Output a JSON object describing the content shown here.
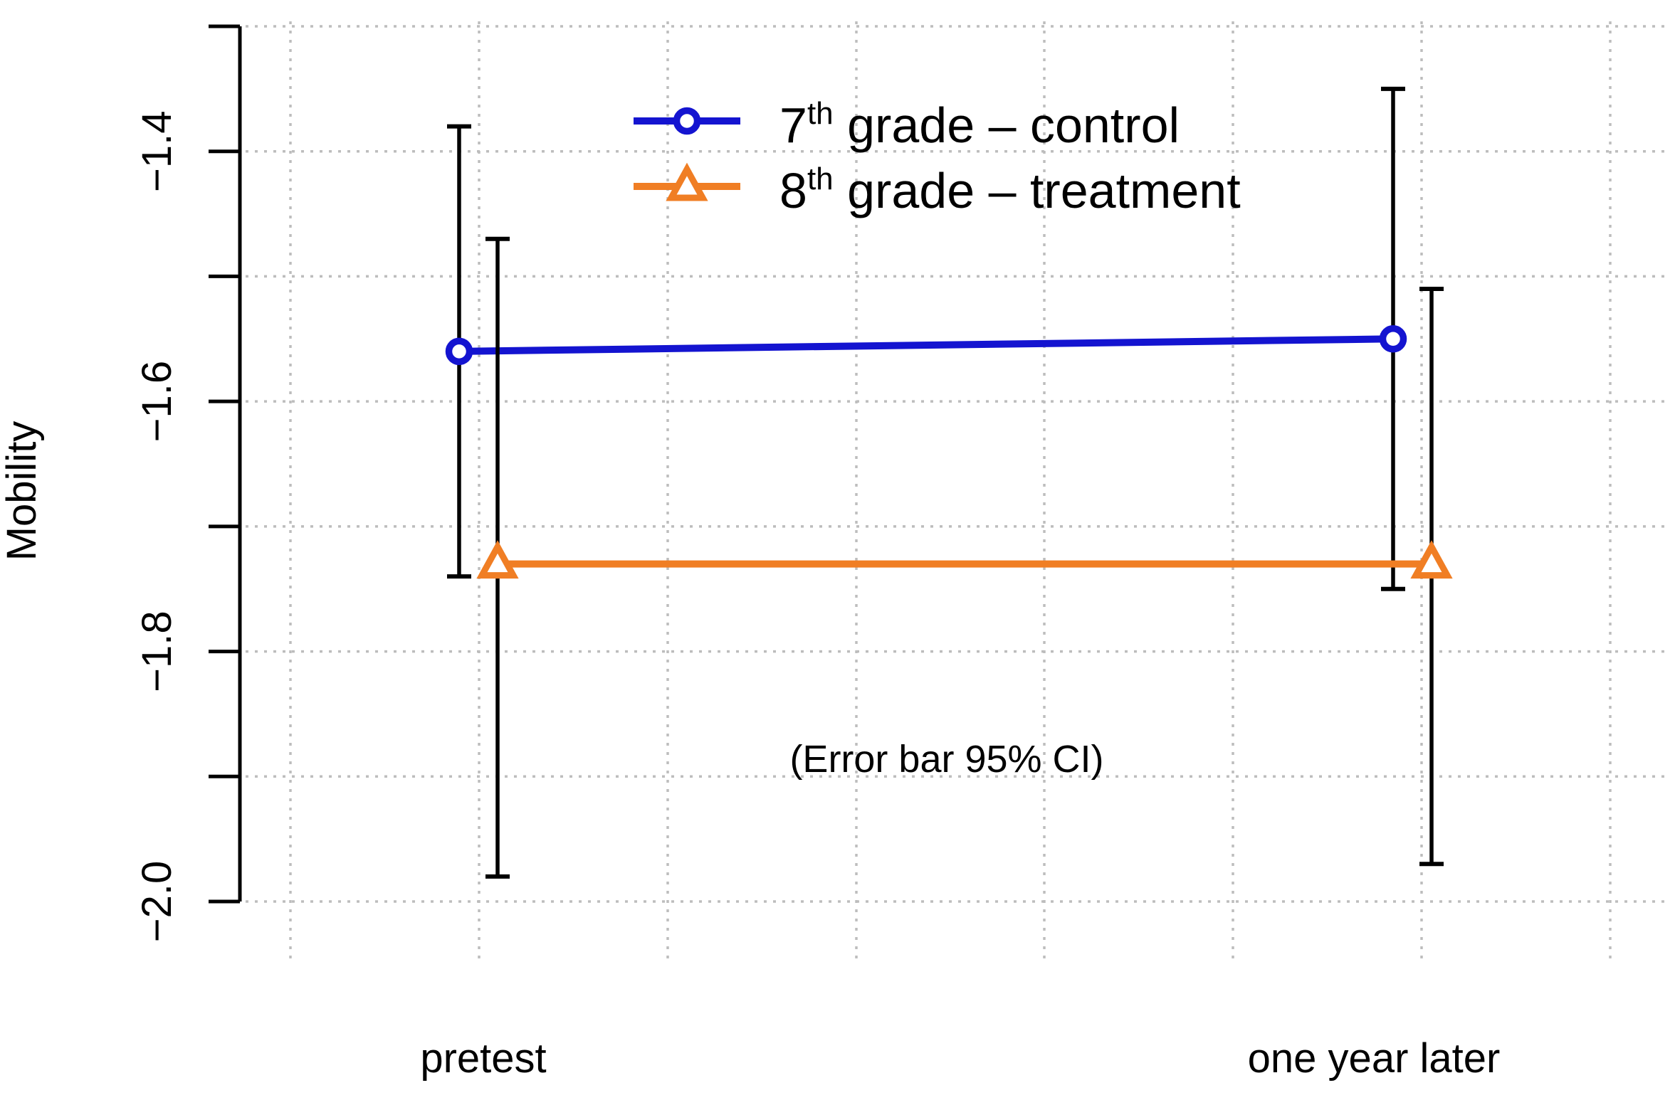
{
  "chart_data": {
    "type": "line",
    "title": "",
    "categories": [
      "pretest",
      "one year later"
    ],
    "ylabel": "Mobility",
    "ylim": [
      -2.0,
      -1.3
    ],
    "yticks": [
      -1.3,
      -1.4,
      -1.5,
      -1.6,
      -1.7,
      -1.8,
      -1.9,
      -2.0
    ],
    "ytick_items": [
      {
        "v": -1.3,
        "label": ""
      },
      {
        "v": -1.4,
        "label": "−1.4"
      },
      {
        "v": -1.5,
        "label": ""
      },
      {
        "v": -1.6,
        "label": "−1.6"
      },
      {
        "v": -1.7,
        "label": ""
      },
      {
        "v": -1.8,
        "label": "−1.8"
      },
      {
        "v": -1.9,
        "label": ""
      },
      {
        "v": -2.0,
        "label": "−2.0"
      }
    ],
    "grid": true,
    "grid_style": "dotted",
    "legend_position": "top-center-inside",
    "annotation": "(Error bar 95% CI)",
    "error_bars": "95% CI",
    "error_bar_color": "#000000",
    "series": [
      {
        "key": "control",
        "name": "7th grade – control",
        "label_parts": {
          "base": "7",
          "sup": "th",
          "rest": " grade – control"
        },
        "color": "#1414d0",
        "marker": "circle",
        "values": [
          -1.56,
          -1.55
        ],
        "ci_high": [
          -1.38,
          -1.35
        ],
        "ci_low": [
          -1.74,
          -1.75
        ]
      },
      {
        "key": "treatment",
        "name": "8th grade – treatment",
        "label_parts": {
          "base": "8",
          "sup": "th",
          "rest": " grade – treatment"
        },
        "color": "#f07e24",
        "marker": "triangle",
        "values": [
          -1.73,
          -1.73
        ],
        "ci_high": [
          -1.47,
          -1.51
        ],
        "ci_low": [
          -1.98,
          -1.97
        ]
      }
    ],
    "colors": {
      "grid": "#bdbdbd",
      "axis": "#000000",
      "text": "#000000",
      "background": "#ffffff"
    }
  }
}
